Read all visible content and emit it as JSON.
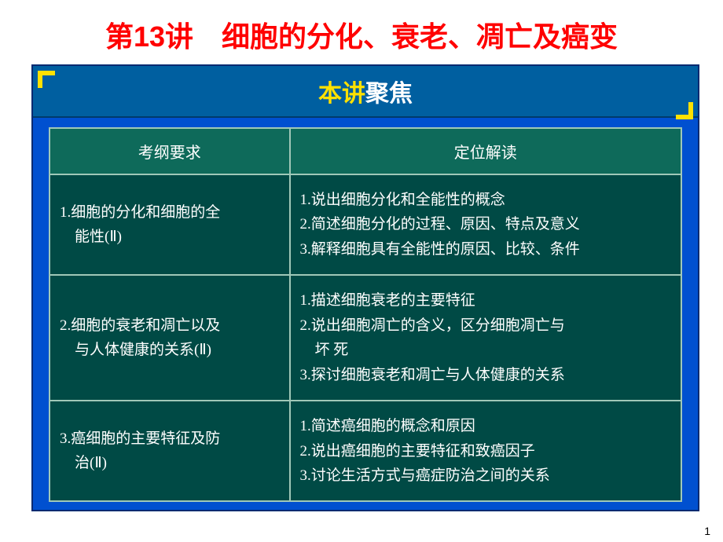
{
  "title": "第13讲　细胞的分化、衰老、凋亡及癌变",
  "focus": {
    "a": "本讲",
    "b": "聚焦"
  },
  "headers": {
    "left": "考纲要求",
    "right": "定位解读"
  },
  "rows": [
    {
      "left_lines": [
        "1.细胞的分化和细胞的全",
        "　能性(Ⅱ)"
      ],
      "right_lines": [
        "1.说出细胞分化和全能性的概念",
        "2.简述细胞分化的过程、原因、特点及意义",
        "3.解释细胞具有全能性的原因、比较、条件"
      ]
    },
    {
      "left_lines": [
        "2.细胞的衰老和凋亡以及",
        "　与人体健康的关系(Ⅱ)"
      ],
      "right_lines": [
        "1.描述细胞衰老的主要特征",
        "2.说出细胞凋亡的含义，区分细胞凋亡与",
        "　坏 死",
        "3.探讨细胞衰老和凋亡与人体健康的关系"
      ]
    },
    {
      "left_lines": [
        "3.癌细胞的主要特征及防",
        "　治(Ⅱ)"
      ],
      "right_lines": [
        "1.简述癌细胞的概念和原因",
        "2.说出癌细胞的主要特征和致癌因子",
        "3.讨论生活方式与癌症防治之间的关系"
      ]
    }
  ],
  "page_number": "1",
  "colors": {
    "title": "#ff0000",
    "frame_bg": "#0050d0",
    "bar_bg": "#005fa0",
    "corner": "#ffe100",
    "table_bg": "#004a45",
    "header_bg": "#0e6a5a",
    "border": "#a0c8b8",
    "text": "#ffffff"
  }
}
